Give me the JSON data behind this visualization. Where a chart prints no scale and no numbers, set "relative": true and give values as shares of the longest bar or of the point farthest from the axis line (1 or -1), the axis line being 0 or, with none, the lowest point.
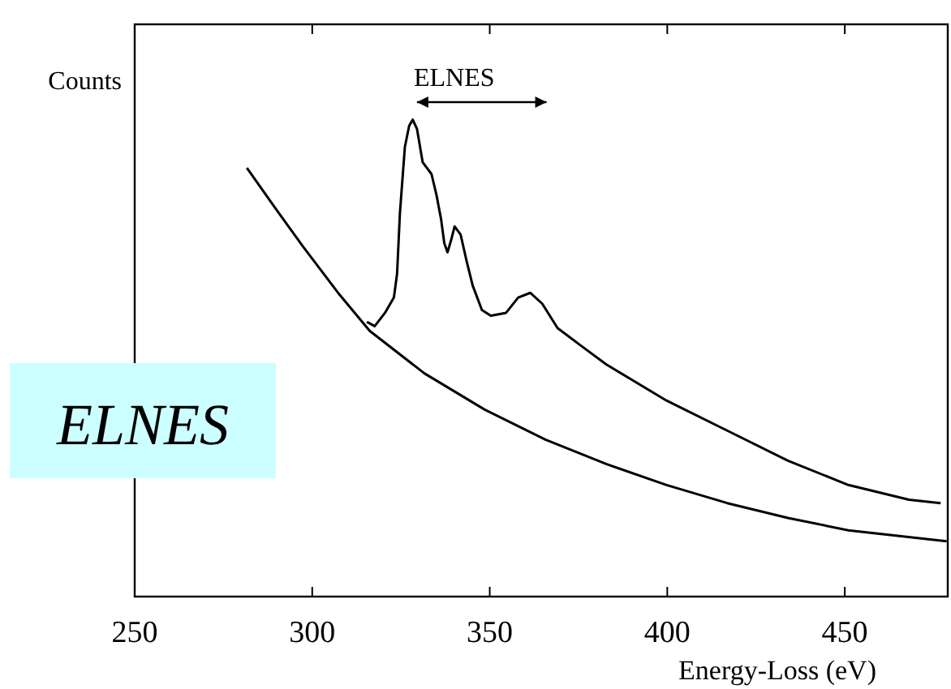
{
  "chart_data": {
    "type": "line",
    "relative": true,
    "xlabel": "Energy-Loss (eV)",
    "ylabel": "Counts",
    "annotations": [
      "ELNES",
      "ELNES"
    ],
    "xlim": [
      250,
      479
    ],
    "xticks": [
      250,
      300,
      350,
      400,
      450
    ],
    "line_style": "solid",
    "series": [
      {
        "color": "#000000",
        "x": [
          315.4,
          317.6,
          320.5,
          323.0,
          323.9,
          324.7,
          326.1,
          327.3,
          328.3,
          329.5,
          331.1,
          333.6,
          335.0,
          336.3,
          337.2,
          338.1,
          339.1,
          340.1,
          341.8,
          343.5,
          345.2,
          347.8,
          350.3,
          354.6,
          358.0,
          361.4,
          364.8,
          369.1,
          375.9,
          382.8,
          399.8,
          416.9,
          434.0,
          451.0,
          468.1,
          477.0
        ],
        "values": [
          0.576,
          0.567,
          0.595,
          0.627,
          0.677,
          0.804,
          0.943,
          0.987,
          1,
          0.981,
          0.911,
          0.886,
          0.842,
          0.791,
          0.741,
          0.722,
          0.747,
          0.776,
          0.759,
          0.703,
          0.652,
          0.601,
          0.589,
          0.595,
          0.627,
          0.637,
          0.614,
          0.563,
          0.525,
          0.487,
          0.411,
          0.348,
          0.285,
          0.234,
          0.203,
          0.196
        ]
      },
      {
        "color": "#000000",
        "x": [
          281.6,
          290.6,
          297.4,
          307.7,
          316.2,
          331.6,
          348.6,
          365.7,
          382.8,
          399.8,
          416.9,
          434.0,
          451.0,
          478.7
        ],
        "values": [
          0.899,
          0.804,
          0.734,
          0.633,
          0.557,
          0.468,
          0.392,
          0.329,
          0.278,
          0.234,
          0.196,
          0.165,
          0.139,
          0.116
        ]
      }
    ]
  }
}
